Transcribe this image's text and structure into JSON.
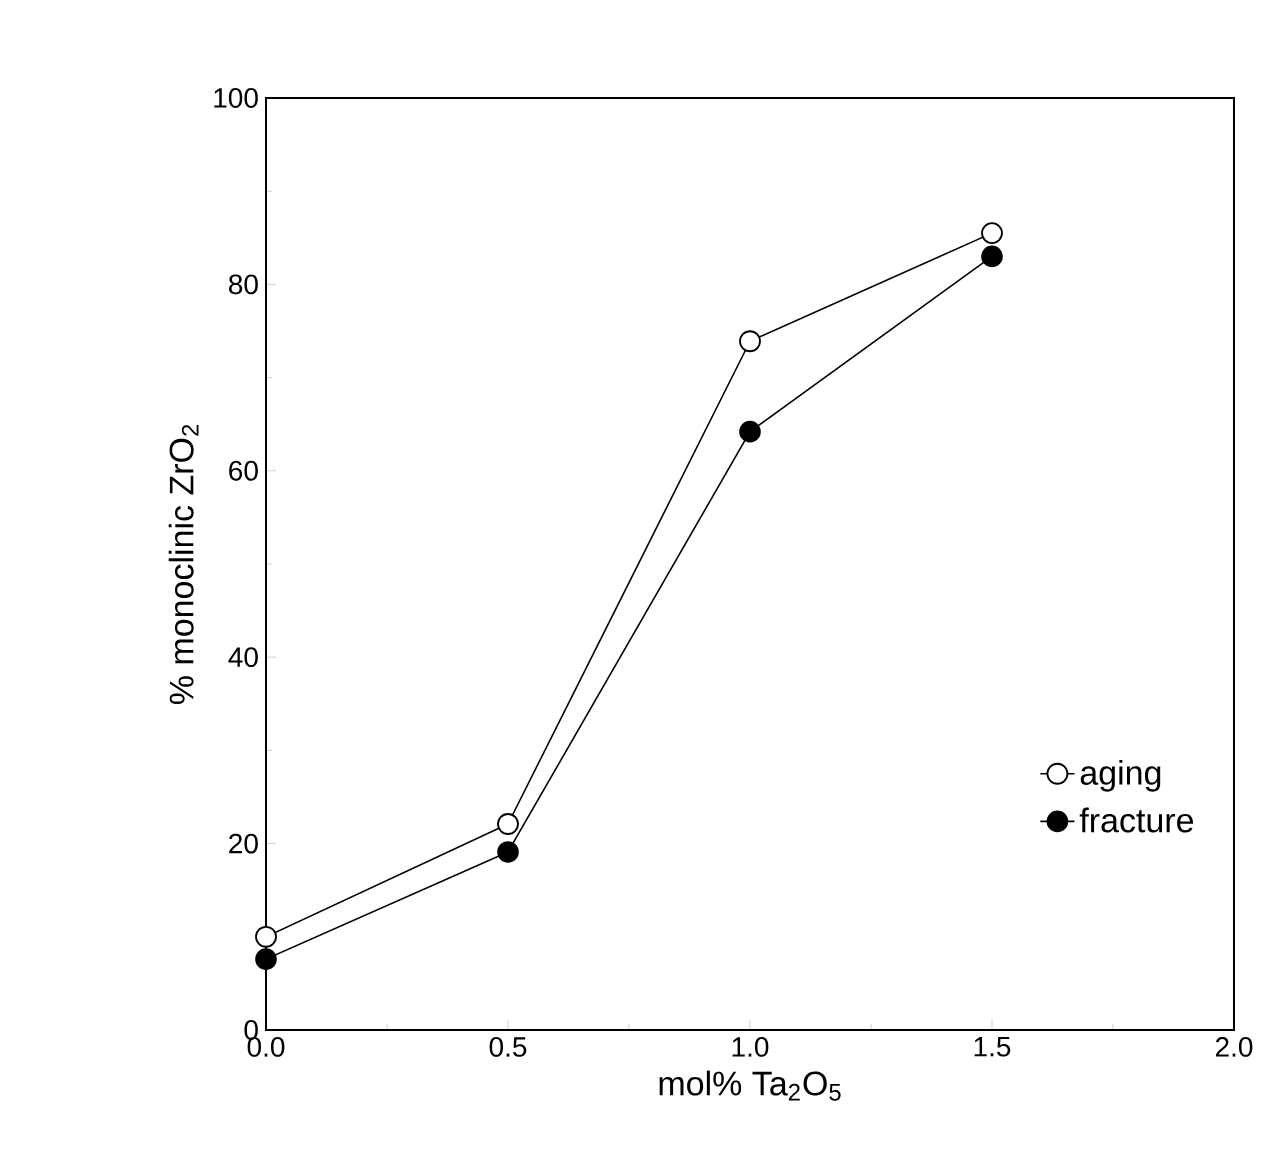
{
  "chart_data": {
    "type": "line",
    "xlabel": "mol% Ta$_{2}$O$_{5}$",
    "ylabel": "% monoclinic ZrO$_{2}$",
    "xlim": [
      0,
      2
    ],
    "ylim": [
      0,
      100
    ],
    "xticks": [
      {
        "value": 0,
        "label": "0.0"
      },
      {
        "value": 0.5,
        "label": "0.5"
      },
      {
        "value": 1,
        "label": "1.0"
      },
      {
        "value": 1.5,
        "label": "1.5"
      },
      {
        "value": 2,
        "label": "2.0"
      }
    ],
    "yticks": [
      0,
      20,
      40,
      60,
      80,
      100
    ],
    "x": [
      0,
      0.5,
      1,
      1.5
    ],
    "legend": "bottom right",
    "grid": false,
    "series": [
      {
        "name": "aging",
        "color": "#000000",
        "values": [
          10,
          22.1,
          73.9,
          85.5
        ],
        "marker": "circle"
      },
      {
        "name": "fracture",
        "color": "#000000",
        "values": [
          7.6,
          19.1,
          64.2,
          83
        ],
        "marker": "filled circle"
      }
    ]
  }
}
